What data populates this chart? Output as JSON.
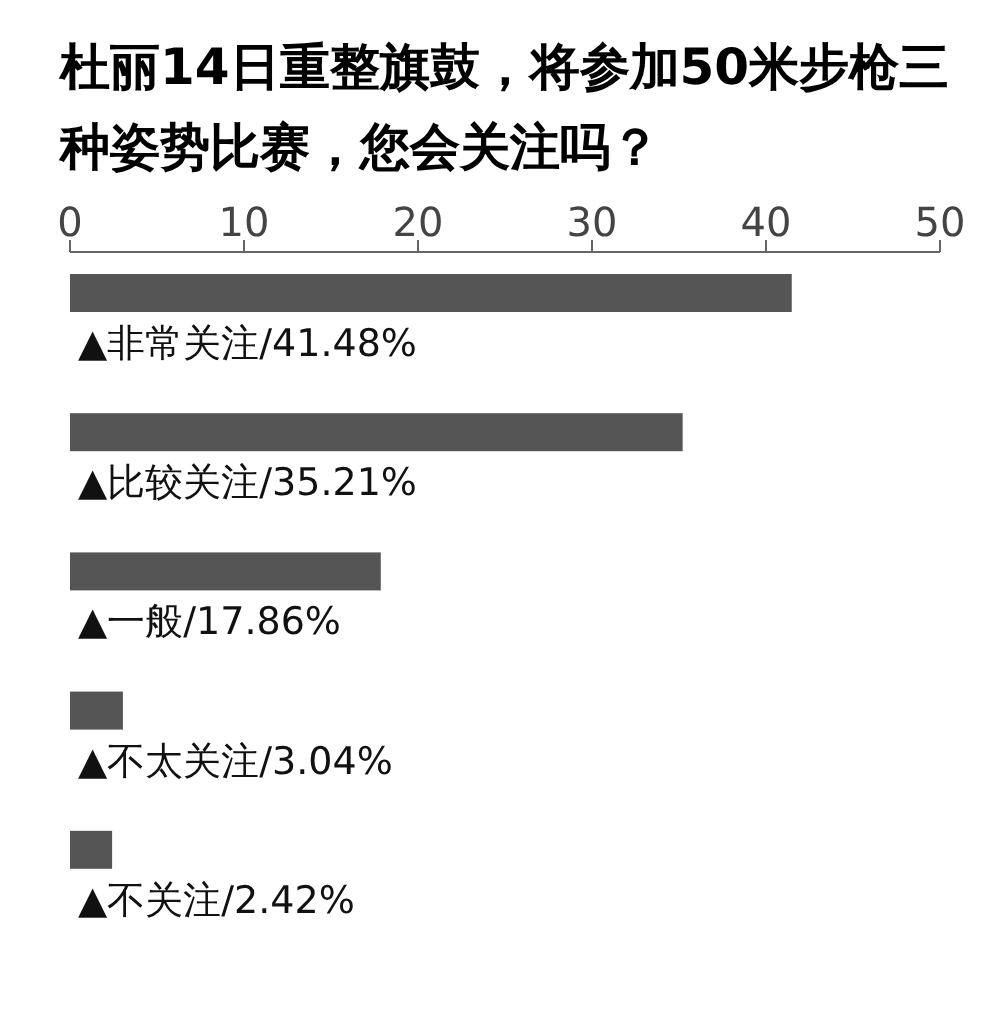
{
  "chart_data": {
    "type": "bar",
    "orientation": "horizontal",
    "title": "杜丽14日重整旗鼓，将参加50米步枪三种姿势比赛，您会关注吗？",
    "categories": [
      "▲非常关注/41.48%",
      "▲比较关注/35.21%",
      "▲一般/17.86%",
      "▲不太关注/3.04%",
      "▲不关注/2.42%"
    ],
    "values": [
      41.48,
      35.21,
      17.86,
      3.04,
      2.42
    ],
    "color": "#555555",
    "xlim": [
      0,
      50
    ],
    "xticks": [
      0,
      10,
      20,
      30,
      40,
      50
    ]
  }
}
